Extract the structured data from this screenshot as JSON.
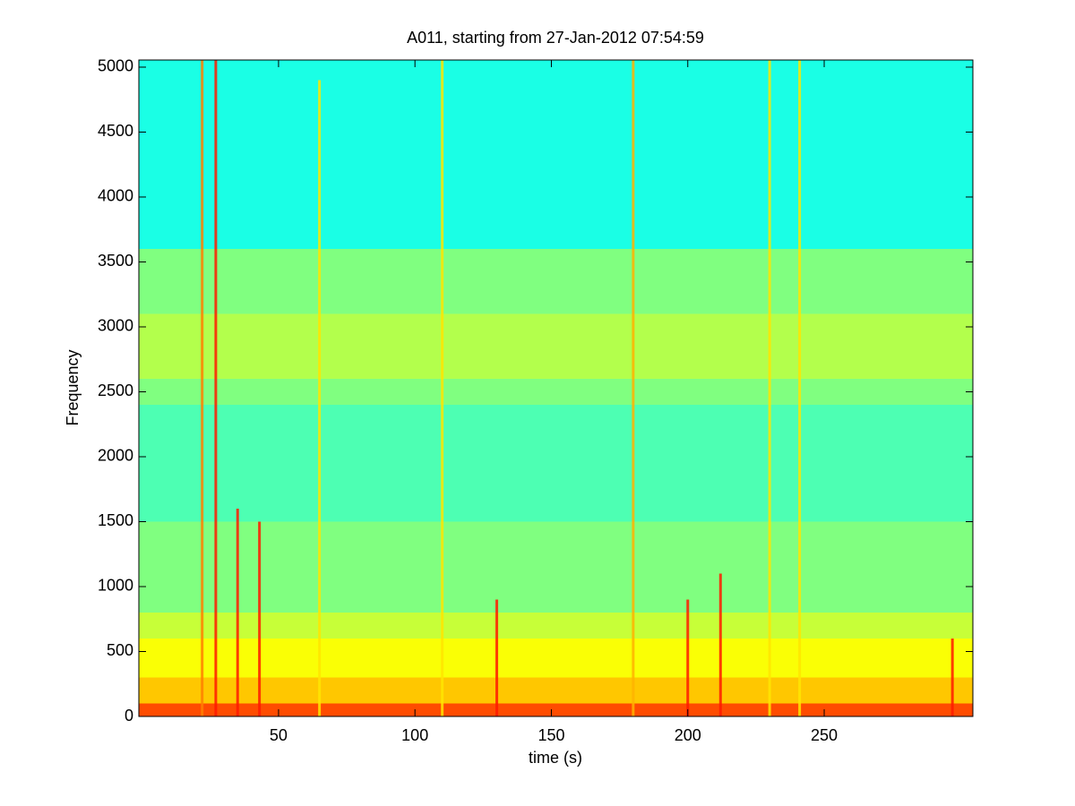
{
  "chart_data": {
    "type": "spectrogram",
    "title": "A011, starting from 27-Jan-2012 07:54:59",
    "xlabel": "time (s)",
    "ylabel": "Frequency",
    "xlim": [
      -1.2,
      304.5
    ],
    "ylim": [
      0,
      5055
    ],
    "xticks": [
      50,
      100,
      150,
      200,
      250
    ],
    "yticks": [
      0,
      500,
      1000,
      1500,
      2000,
      2500,
      3000,
      3500,
      4000,
      4500,
      5000
    ],
    "colormap": "jet",
    "bands": {
      "edges": [
        0,
        100,
        300,
        600,
        800,
        1500,
        2400,
        2600,
        3100,
        3600,
        5055
      ],
      "levels": [
        0.8,
        0.68,
        0.62,
        0.57,
        0.5,
        0.45,
        0.5,
        0.55,
        0.5,
        0.4
      ]
    },
    "streaks": {
      "x": [
        22,
        27,
        35,
        43,
        65,
        110,
        130,
        180,
        200,
        212,
        230,
        241,
        297
      ],
      "top": [
        5055,
        5055,
        1600,
        1500,
        4900,
        5055,
        900,
        5055,
        900,
        1100,
        5055,
        5055,
        600
      ],
      "levels": [
        0.75,
        0.85,
        0.85,
        0.85,
        0.65,
        0.65,
        0.85,
        0.7,
        0.85,
        0.85,
        0.65,
        0.65,
        0.85
      ]
    }
  }
}
